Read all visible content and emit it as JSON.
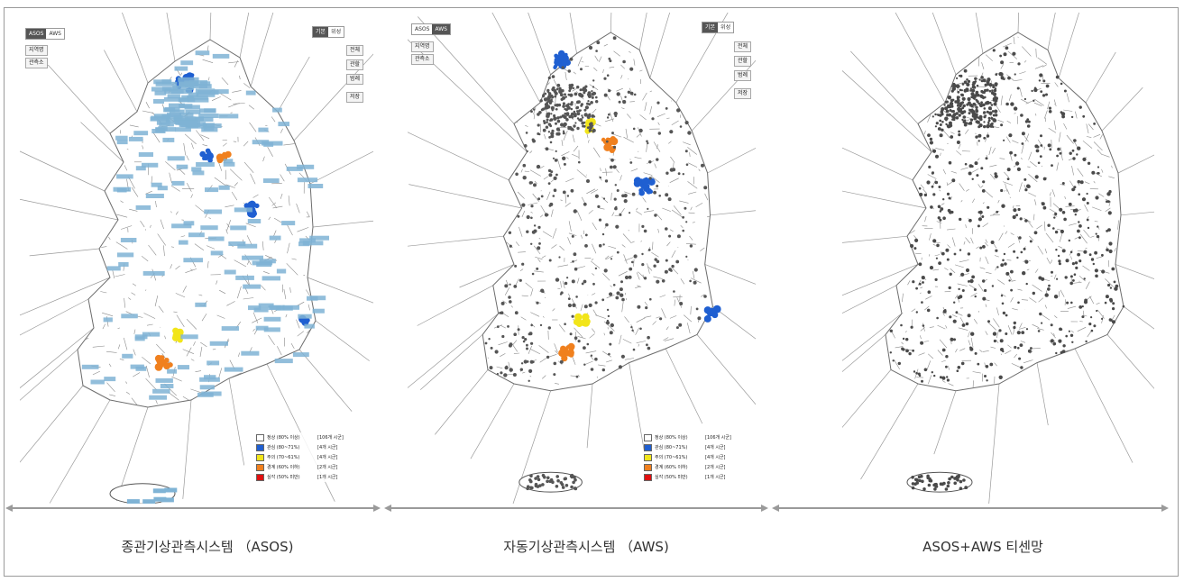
{
  "panels": [
    {
      "caption": "종관기상관측시스템 （ASOS)",
      "toggle": [
        "ASOS",
        "AWS"
      ],
      "toggle_active": 0,
      "side_buttons": [
        "지역명",
        "관측소"
      ],
      "view_toggle": [
        "기본",
        "위성"
      ],
      "right_buttons": [
        "전체",
        "관할",
        "범례",
        "저장"
      ],
      "marker_color": "#7fb3d5",
      "legend": [
        {
          "color": "#ffffff",
          "label": "정상 (80% 이상)",
          "count": "[106개 시군]"
        },
        {
          "color": "#1f5fd1",
          "label": "관심 (80~71%)",
          "count": "[4개 시군]"
        },
        {
          "color": "#f2e51a",
          "label": "주의 (70~61%)",
          "count": "[4개 시군]"
        },
        {
          "color": "#f0801e",
          "label": "경계 (60% 이하)",
          "count": "[2개 시군]"
        },
        {
          "color": "#e01010",
          "label": "심각 (50% 미만)",
          "count": "[1개 시군]"
        }
      ]
    },
    {
      "caption": "자동기상관측시스템 （AWS)",
      "toggle": [
        "ASOS",
        "AWS"
      ],
      "toggle_active": 1,
      "side_buttons": [
        "지역명",
        "관측소"
      ],
      "view_toggle": [
        "기본",
        "위성"
      ],
      "right_buttons": [
        "전체",
        "관할",
        "범례",
        "저장"
      ],
      "marker_color": "#555555",
      "legend": [
        {
          "color": "#ffffff",
          "label": "정상 (80% 이상)",
          "count": "[106개 시군]"
        },
        {
          "color": "#1f5fd1",
          "label": "관심 (80~71%)",
          "count": "[4개 시군]"
        },
        {
          "color": "#f2e51a",
          "label": "주의 (70~61%)",
          "count": "[4개 시군]"
        },
        {
          "color": "#f0801e",
          "label": "경계 (60% 이하)",
          "count": "[2개 시군]"
        },
        {
          "color": "#e01010",
          "label": "심각 (50% 미만)",
          "count": "[1개 시군]"
        }
      ]
    },
    {
      "caption": "ASOS+AWS 티센망",
      "marker_color": "#4a4a4a"
    }
  ],
  "colors": {
    "normal": "#ffffff",
    "interest": "#1f5fd1",
    "caution": "#f2e51a",
    "alert": "#f0801e",
    "serious": "#e01010",
    "cell_line": "#8a8a8a",
    "divider": "#9a9a9a"
  }
}
